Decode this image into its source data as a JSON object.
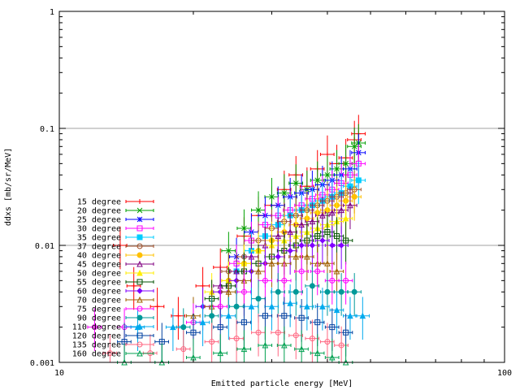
{
  "chart_data": {
    "type": "scatter",
    "title": "",
    "xlabel": "Emitted particle energy [MeV]",
    "ylabel": "ddxs [mb/sr/MeV]",
    "x_scale": "log",
    "y_scale": "log",
    "xlim": [
      10,
      100
    ],
    "ylim": [
      0.001,
      1
    ],
    "x_ticks": [
      10,
      100
    ],
    "x_tick_labels": [
      "10",
      "100"
    ],
    "y_ticks": [
      0.001,
      0.01,
      0.1,
      1
    ],
    "y_tick_labels": [
      "0.001",
      "0.01",
      "0.1",
      "1"
    ],
    "grid": "horizontal at decades",
    "legend_position": "left-middle",
    "error_bars": true,
    "series": [
      {
        "name": "15 degree",
        "color": "#ff0000",
        "marker": "plus",
        "points": [
          [
            13.7,
            0.01
          ],
          [
            14.7,
            0.0045
          ],
          [
            16.6,
            0.003
          ],
          [
            18.5,
            0.0025
          ],
          [
            21,
            0.0045
          ],
          [
            23,
            0.0065
          ],
          [
            26,
            0.012
          ],
          [
            28,
            0.018
          ],
          [
            30,
            0.022
          ],
          [
            32,
            0.03
          ],
          [
            34,
            0.04
          ],
          [
            36,
            0.032
          ],
          [
            38,
            0.045
          ],
          [
            40,
            0.06
          ],
          [
            42,
            0.05
          ],
          [
            44,
            0.056
          ],
          [
            46,
            0.08
          ],
          [
            47,
            0.09
          ]
        ]
      },
      {
        "name": "20 degree",
        "color": "#00a000",
        "marker": "cross",
        "points": [
          [
            24,
            0.009
          ],
          [
            26,
            0.014
          ],
          [
            28,
            0.02
          ],
          [
            30,
            0.026
          ],
          [
            32,
            0.028
          ],
          [
            34,
            0.034
          ],
          [
            36,
            0.03
          ],
          [
            38,
            0.036
          ],
          [
            40,
            0.04
          ],
          [
            42,
            0.045
          ],
          [
            44,
            0.05
          ],
          [
            46,
            0.07
          ],
          [
            47,
            0.075
          ]
        ]
      },
      {
        "name": "25 degree",
        "color": "#0000ff",
        "marker": "asterisk",
        "points": [
          [
            25,
            0.008
          ],
          [
            27,
            0.013
          ],
          [
            29,
            0.018
          ],
          [
            31,
            0.022
          ],
          [
            33,
            0.026
          ],
          [
            35,
            0.028
          ],
          [
            37,
            0.03
          ],
          [
            39,
            0.033
          ],
          [
            41,
            0.036
          ],
          [
            43,
            0.04
          ],
          [
            45,
            0.045
          ],
          [
            47,
            0.062
          ]
        ]
      },
      {
        "name": "30 degree",
        "color": "#ff00ff",
        "marker": "square",
        "points": [
          [
            25,
            0.007
          ],
          [
            27,
            0.011
          ],
          [
            29,
            0.015
          ],
          [
            31,
            0.018
          ],
          [
            33,
            0.02
          ],
          [
            35,
            0.022
          ],
          [
            37,
            0.025
          ],
          [
            39,
            0.027
          ],
          [
            41,
            0.03
          ],
          [
            43,
            0.034
          ],
          [
            45,
            0.04
          ],
          [
            47,
            0.05
          ]
        ]
      },
      {
        "name": "35 degree",
        "color": "#00ccff",
        "marker": "square-filled",
        "points": [
          [
            25,
            0.006
          ],
          [
            27,
            0.009
          ],
          [
            29,
            0.012
          ],
          [
            31,
            0.015
          ],
          [
            33,
            0.018
          ],
          [
            35,
            0.02
          ],
          [
            37,
            0.022
          ],
          [
            39,
            0.024
          ],
          [
            41,
            0.026
          ],
          [
            43,
            0.028
          ],
          [
            45,
            0.032
          ],
          [
            47,
            0.036
          ]
        ]
      },
      {
        "name": "37 degree",
        "color": "#a0522d",
        "marker": "circle",
        "points": [
          [
            24,
            0.006
          ],
          [
            26,
            0.008
          ],
          [
            28,
            0.011
          ],
          [
            30,
            0.014
          ],
          [
            32,
            0.016
          ],
          [
            34,
            0.018
          ],
          [
            36,
            0.02
          ],
          [
            38,
            0.022
          ],
          [
            40,
            0.024
          ],
          [
            42,
            0.026
          ],
          [
            44,
            0.028
          ],
          [
            46,
            0.03
          ]
        ]
      },
      {
        "name": "40 degree",
        "color": "#ffc000",
        "marker": "circle-filled",
        "points": [
          [
            24,
            0.005
          ],
          [
            26,
            0.007
          ],
          [
            28,
            0.009
          ],
          [
            30,
            0.011
          ],
          [
            32,
            0.013
          ],
          [
            34,
            0.015
          ],
          [
            36,
            0.017
          ],
          [
            38,
            0.019
          ],
          [
            40,
            0.02
          ],
          [
            42,
            0.022
          ],
          [
            44,
            0.024
          ],
          [
            46,
            0.026
          ]
        ]
      },
      {
        "name": "45 degree",
        "color": "#800080",
        "marker": "triangle",
        "points": [
          [
            23,
            0.0045
          ],
          [
            25,
            0.006
          ],
          [
            27,
            0.008
          ],
          [
            29,
            0.01
          ],
          [
            31,
            0.012
          ],
          [
            33,
            0.013
          ],
          [
            35,
            0.015
          ],
          [
            37,
            0.016
          ],
          [
            39,
            0.018
          ],
          [
            41,
            0.019
          ],
          [
            43,
            0.02
          ],
          [
            45,
            0.022
          ]
        ]
      },
      {
        "name": "50 degree",
        "color": "#ffee00",
        "marker": "triangle-filled",
        "points": [
          [
            22,
            0.004
          ],
          [
            24,
            0.005
          ],
          [
            26,
            0.007
          ],
          [
            28,
            0.009
          ],
          [
            30,
            0.01
          ],
          [
            32,
            0.011
          ],
          [
            34,
            0.012
          ],
          [
            36,
            0.013
          ],
          [
            38,
            0.014
          ],
          [
            40,
            0.015
          ],
          [
            42,
            0.016
          ],
          [
            44,
            0.017
          ]
        ]
      },
      {
        "name": "55 degree",
        "color": "#005000",
        "marker": "square",
        "points": [
          [
            22,
            0.0035
          ],
          [
            24,
            0.0045
          ],
          [
            26,
            0.006
          ],
          [
            28,
            0.007
          ],
          [
            30,
            0.008
          ],
          [
            32,
            0.009
          ],
          [
            34,
            0.01
          ],
          [
            36,
            0.011
          ],
          [
            38,
            0.012
          ],
          [
            40,
            0.013
          ],
          [
            42,
            0.012
          ],
          [
            44,
            0.011
          ]
        ]
      },
      {
        "name": "60 degree",
        "color": "#8000ff",
        "marker": "diamond-filled",
        "points": [
          [
            21,
            0.003
          ],
          [
            23,
            0.004
          ],
          [
            25,
            0.005
          ],
          [
            27,
            0.006
          ],
          [
            29,
            0.007
          ],
          [
            31,
            0.008
          ],
          [
            33,
            0.009
          ],
          [
            35,
            0.01
          ],
          [
            37,
            0.01
          ],
          [
            39,
            0.011
          ],
          [
            41,
            0.01
          ],
          [
            43,
            0.01
          ]
        ]
      },
      {
        "name": "70 degree",
        "color": "#a06000",
        "marker": "triangle",
        "points": [
          [
            20,
            0.0025
          ],
          [
            22,
            0.003
          ],
          [
            24,
            0.004
          ],
          [
            26,
            0.005
          ],
          [
            28,
            0.006
          ],
          [
            30,
            0.007
          ],
          [
            32,
            0.007
          ],
          [
            34,
            0.008
          ],
          [
            36,
            0.008
          ],
          [
            38,
            0.007
          ],
          [
            40,
            0.007
          ],
          [
            42,
            0.006
          ]
        ]
      },
      {
        "name": "75 degree",
        "color": "#ff00ff",
        "marker": "circle",
        "points": [
          [
            12,
            0.002
          ],
          [
            14,
            0.002
          ],
          [
            20,
            0.0022
          ],
          [
            23,
            0.003
          ],
          [
            26,
            0.004
          ],
          [
            29,
            0.005
          ],
          [
            32,
            0.005
          ],
          [
            35,
            0.006
          ],
          [
            38,
            0.006
          ],
          [
            41,
            0.005
          ],
          [
            44,
            0.005
          ]
        ]
      },
      {
        "name": "90 degree",
        "color": "#009999",
        "marker": "circle-filled",
        "points": [
          [
            19,
            0.002
          ],
          [
            22,
            0.0025
          ],
          [
            25,
            0.003
          ],
          [
            28,
            0.0035
          ],
          [
            31,
            0.004
          ],
          [
            34,
            0.004
          ],
          [
            37,
            0.0045
          ],
          [
            40,
            0.004
          ],
          [
            43,
            0.004
          ],
          [
            46,
            0.004
          ]
        ]
      },
      {
        "name": "110 degree",
        "color": "#00aaee",
        "marker": "triangle-filled",
        "points": [
          [
            15,
            0.002
          ],
          [
            18,
            0.002
          ],
          [
            21,
            0.0022
          ],
          [
            24,
            0.0025
          ],
          [
            27,
            0.003
          ],
          [
            30,
            0.003
          ],
          [
            33,
            0.0032
          ],
          [
            36,
            0.003
          ],
          [
            39,
            0.003
          ],
          [
            42,
            0.0028
          ],
          [
            45,
            0.0025
          ],
          [
            48,
            0.0025
          ]
        ]
      },
      {
        "name": "120 degree",
        "color": "#0040a0",
        "marker": "square",
        "points": [
          [
            14,
            0.0015
          ],
          [
            17,
            0.0015
          ],
          [
            20,
            0.0018
          ],
          [
            23,
            0.002
          ],
          [
            26,
            0.0022
          ],
          [
            29,
            0.0025
          ],
          [
            32,
            0.0025
          ],
          [
            35,
            0.0024
          ],
          [
            38,
            0.0022
          ],
          [
            41,
            0.002
          ],
          [
            44,
            0.0018
          ]
        ]
      },
      {
        "name": "135 degree",
        "color": "#ff6680",
        "marker": "circle",
        "points": [
          [
            13,
            0.0012
          ],
          [
            16,
            0.0012
          ],
          [
            19,
            0.0013
          ],
          [
            22,
            0.0015
          ],
          [
            25,
            0.0016
          ],
          [
            28,
            0.0018
          ],
          [
            31,
            0.0018
          ],
          [
            34,
            0.0017
          ],
          [
            37,
            0.0016
          ],
          [
            40,
            0.0015
          ],
          [
            43,
            0.0014
          ]
        ]
      },
      {
        "name": "160 degree",
        "color": "#00a050",
        "marker": "triangle",
        "points": [
          [
            14,
            0.001
          ],
          [
            17,
            0.001
          ],
          [
            20,
            0.0011
          ],
          [
            23,
            0.0012
          ],
          [
            26,
            0.0013
          ],
          [
            29,
            0.0014
          ],
          [
            32,
            0.0014
          ],
          [
            35,
            0.0013
          ],
          [
            38,
            0.0012
          ],
          [
            41,
            0.0011
          ],
          [
            44,
            0.001
          ]
        ]
      }
    ]
  }
}
